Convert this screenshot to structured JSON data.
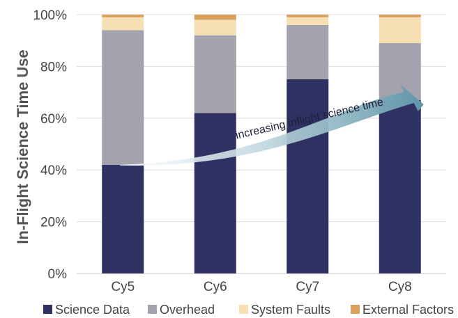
{
  "chart_data": {
    "type": "bar",
    "stacked": true,
    "categories": [
      "Cy5",
      "Cy6",
      "Cy7",
      "Cy8"
    ],
    "series": [
      {
        "name": "Science Data",
        "color": "#2f3162",
        "values": [
          42,
          62,
          75,
          67
        ]
      },
      {
        "name": "Overhead",
        "color": "#a3a2ad",
        "values": [
          52,
          30,
          21,
          22
        ]
      },
      {
        "name": "System Faults",
        "color": "#f7dfb4",
        "values": [
          5,
          6,
          3,
          10
        ]
      },
      {
        "name": "External Factors",
        "color": "#d9a05e",
        "values": [
          1,
          2,
          1,
          1
        ]
      }
    ],
    "ylabel": "In-Flight Science Time Use",
    "xlabel": "",
    "ylim": [
      0,
      100
    ],
    "yticks": [
      "0%",
      "20%",
      "40%",
      "60%",
      "80%",
      "100%"
    ],
    "grid": true,
    "legend_position": "bottom",
    "annotation": {
      "text": "increasing inflight science time",
      "from": {
        "category": "Cy5",
        "value": 42
      },
      "to": {
        "category": "Cy8",
        "value": 75
      },
      "arrow_color": "#5f96a8"
    }
  }
}
